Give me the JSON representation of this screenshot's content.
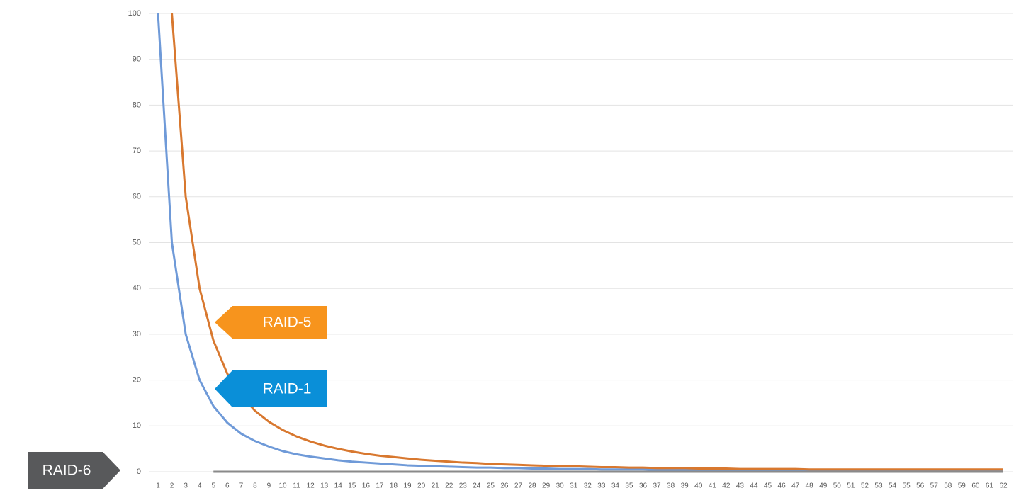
{
  "chart_data": {
    "type": "line",
    "categories": [
      1,
      2,
      3,
      4,
      5,
      6,
      7,
      8,
      9,
      10,
      11,
      12,
      13,
      14,
      15,
      16,
      17,
      18,
      19,
      20,
      21,
      22,
      23,
      24,
      25,
      26,
      27,
      28,
      29,
      30,
      31,
      32,
      33,
      34,
      35,
      36,
      37,
      38,
      39,
      40,
      41,
      42,
      43,
      44,
      45,
      46,
      47,
      48,
      49,
      50,
      51,
      52,
      53,
      54,
      55,
      56,
      57,
      58,
      59,
      60,
      61,
      62
    ],
    "series": [
      {
        "name": "RAID-1",
        "color": "#6f9ad8",
        "label_color": "#0a8fd8",
        "values": [
          100,
          50,
          30,
          20,
          14.3,
          10.7,
          8.3,
          6.7,
          5.5,
          4.5,
          3.8,
          3.3,
          2.9,
          2.5,
          2.2,
          2,
          1.8,
          1.6,
          1.4,
          1.3,
          1.2,
          1.1,
          1,
          0.9,
          0.9,
          0.8,
          0.8,
          0.7,
          0.7,
          0.6,
          0.6,
          0.6,
          0.5,
          0.5,
          0.5,
          0.5,
          0.4,
          0.4,
          0.4,
          0.4,
          0.4,
          0.4,
          0.3,
          0.3,
          0.3,
          0.3,
          0.3,
          0.3,
          0.3,
          0.3,
          0.3,
          0.3,
          0.3,
          0.3,
          0.3,
          0.3,
          0.3,
          0.3,
          0.3,
          0.3,
          0.3,
          0.3
        ]
      },
      {
        "name": "RAID-5",
        "color": "#d8782f",
        "label_color": "#f7941d",
        "values": [
          null,
          100,
          60,
          40,
          28.6,
          21.4,
          16.7,
          13.3,
          10.9,
          9.1,
          7.7,
          6.6,
          5.7,
          5,
          4.4,
          3.9,
          3.5,
          3.2,
          2.9,
          2.6,
          2.4,
          2.2,
          2,
          1.9,
          1.7,
          1.6,
          1.5,
          1.4,
          1.3,
          1.2,
          1.2,
          1.1,
          1,
          1,
          0.9,
          0.9,
          0.8,
          0.8,
          0.8,
          0.7,
          0.7,
          0.7,
          0.6,
          0.6,
          0.6,
          0.6,
          0.6,
          0.5,
          0.5,
          0.5,
          0.5,
          0.5,
          0.5,
          0.5,
          0.5,
          0.5,
          0.5,
          0.5,
          0.5,
          0.5,
          0.5,
          0.5
        ]
      },
      {
        "name": "RAID-6",
        "color": "#8a8a8a",
        "label_color": "#58595b",
        "values": [
          null,
          null,
          null,
          null,
          0,
          0,
          0,
          0,
          0,
          0,
          0,
          0,
          0,
          0,
          0,
          0,
          0,
          0,
          0,
          0,
          0,
          0,
          0,
          0,
          0,
          0,
          0,
          0,
          0,
          0,
          0,
          0,
          0,
          0,
          0,
          0,
          0,
          0,
          0,
          0,
          0,
          0,
          0,
          0,
          0,
          0,
          0,
          0,
          0,
          0,
          0,
          0,
          0,
          0,
          0,
          0,
          0,
          0,
          0,
          0,
          0,
          0
        ]
      }
    ],
    "ylim": [
      0,
      100
    ],
    "yticks": [
      0,
      10,
      20,
      30,
      40,
      50,
      60,
      70,
      80,
      90,
      100
    ],
    "grid": true
  }
}
